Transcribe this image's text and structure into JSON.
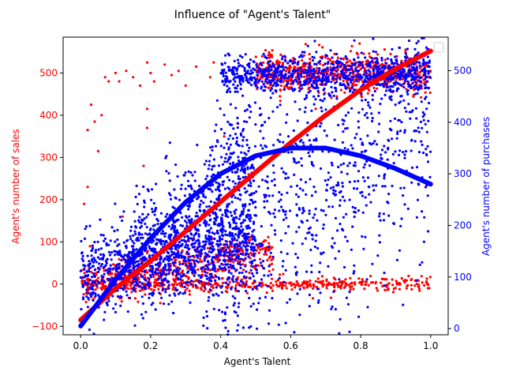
{
  "chart_data": {
    "type": "scatter",
    "title": "Influence of \"Agent's Talent\"",
    "xlabel": "Agent's Talent",
    "ylabel_left": "Agent's number of sales",
    "ylabel_right": "Agent's number of purchases",
    "xlim": [
      -0.05,
      1.05
    ],
    "ylim_left": [
      -120,
      585
    ],
    "ylim_right": [
      -12,
      565
    ],
    "x_ticks": [
      "0.0",
      "0.2",
      "0.4",
      "0.6",
      "0.8",
      "1.0"
    ],
    "y_left_ticks": [
      "−100",
      "0",
      "100",
      "200",
      "300",
      "400",
      "500"
    ],
    "y_right_ticks": [
      "0",
      "100",
      "200",
      "300",
      "400",
      "500"
    ],
    "grid": false,
    "legend": {
      "placement": "top-right",
      "entries": []
    },
    "colors": {
      "left_axis": "#ff0000",
      "right_axis": "#0000ff",
      "axes": "#000000"
    },
    "series": [
      {
        "axis": "left",
        "kind": "scatter",
        "color": "#ff0000",
        "clusters": [
          {
            "x": [
              0.0,
              1.0
            ],
            "y": [
              0,
              0
            ],
            "spread": 8,
            "count": 450
          },
          {
            "x": [
              0.5,
              1.0
            ],
            "y": [
              500,
              500
            ],
            "spread": 22,
            "count": 700
          },
          {
            "x": [
              0.0,
              0.55
            ],
            "y": [
              0,
              80
            ],
            "spread": 25,
            "count": 500
          }
        ],
        "points": [
          [
            0.01,
            190
          ],
          [
            0.02,
            365
          ],
          [
            0.02,
            230
          ],
          [
            0.03,
            425
          ],
          [
            0.04,
            385
          ],
          [
            0.05,
            315
          ],
          [
            0.06,
            400
          ],
          [
            0.07,
            490
          ],
          [
            0.08,
            480
          ],
          [
            0.1,
            500
          ],
          [
            0.11,
            480
          ],
          [
            0.13,
            505
          ],
          [
            0.15,
            490
          ],
          [
            0.17,
            470
          ],
          [
            0.19,
            525
          ],
          [
            0.2,
            500
          ],
          [
            0.21,
            480
          ],
          [
            0.24,
            520
          ],
          [
            0.26,
            495
          ],
          [
            0.28,
            505
          ],
          [
            0.3,
            470
          ],
          [
            0.33,
            515
          ],
          [
            0.37,
            490
          ],
          [
            0.38,
            525
          ],
          [
            0.19,
            415
          ],
          [
            0.19,
            370
          ],
          [
            0.18,
            280
          ],
          [
            0.12,
            160
          ],
          [
            0.41,
            350
          ],
          [
            0.45,
            380
          ],
          [
            0.48,
            260
          ],
          [
            0.5,
            300
          ]
        ]
      },
      {
        "axis": "left",
        "kind": "fit-line",
        "color": "#ff0000",
        "x": [
          0.0,
          0.1,
          0.2,
          0.3,
          0.4,
          0.5,
          0.6,
          0.7,
          0.8,
          0.9,
          1.0
        ],
        "y": [
          -85,
          -10,
          55,
          125,
          195,
          265,
          335,
          400,
          460,
          510,
          552
        ]
      },
      {
        "axis": "right",
        "kind": "scatter",
        "color": "#0000ff",
        "clusters": [
          {
            "x": [
              0.0,
              0.5
            ],
            "y": [
              100,
              170
            ],
            "spread": 40,
            "count": 1000
          },
          {
            "x": [
              0.4,
              1.0
            ],
            "y": [
              490,
              495
            ],
            "spread": 18,
            "count": 800
          },
          {
            "x": [
              0.35,
              1.0
            ],
            "y": [
              130,
              420
            ],
            "spread": 140,
            "count": 1000
          },
          {
            "x": [
              0.15,
              0.5
            ],
            "y": [
              150,
              310
            ],
            "spread": 60,
            "count": 500
          }
        ]
      },
      {
        "axis": "right",
        "kind": "fit-line",
        "color": "#0000ff",
        "x": [
          0.0,
          0.1,
          0.2,
          0.3,
          0.4,
          0.5,
          0.6,
          0.7,
          0.8,
          0.9,
          1.0
        ],
        "y": [
          5,
          95,
          175,
          245,
          300,
          335,
          350,
          350,
          335,
          310,
          280
        ]
      }
    ]
  }
}
